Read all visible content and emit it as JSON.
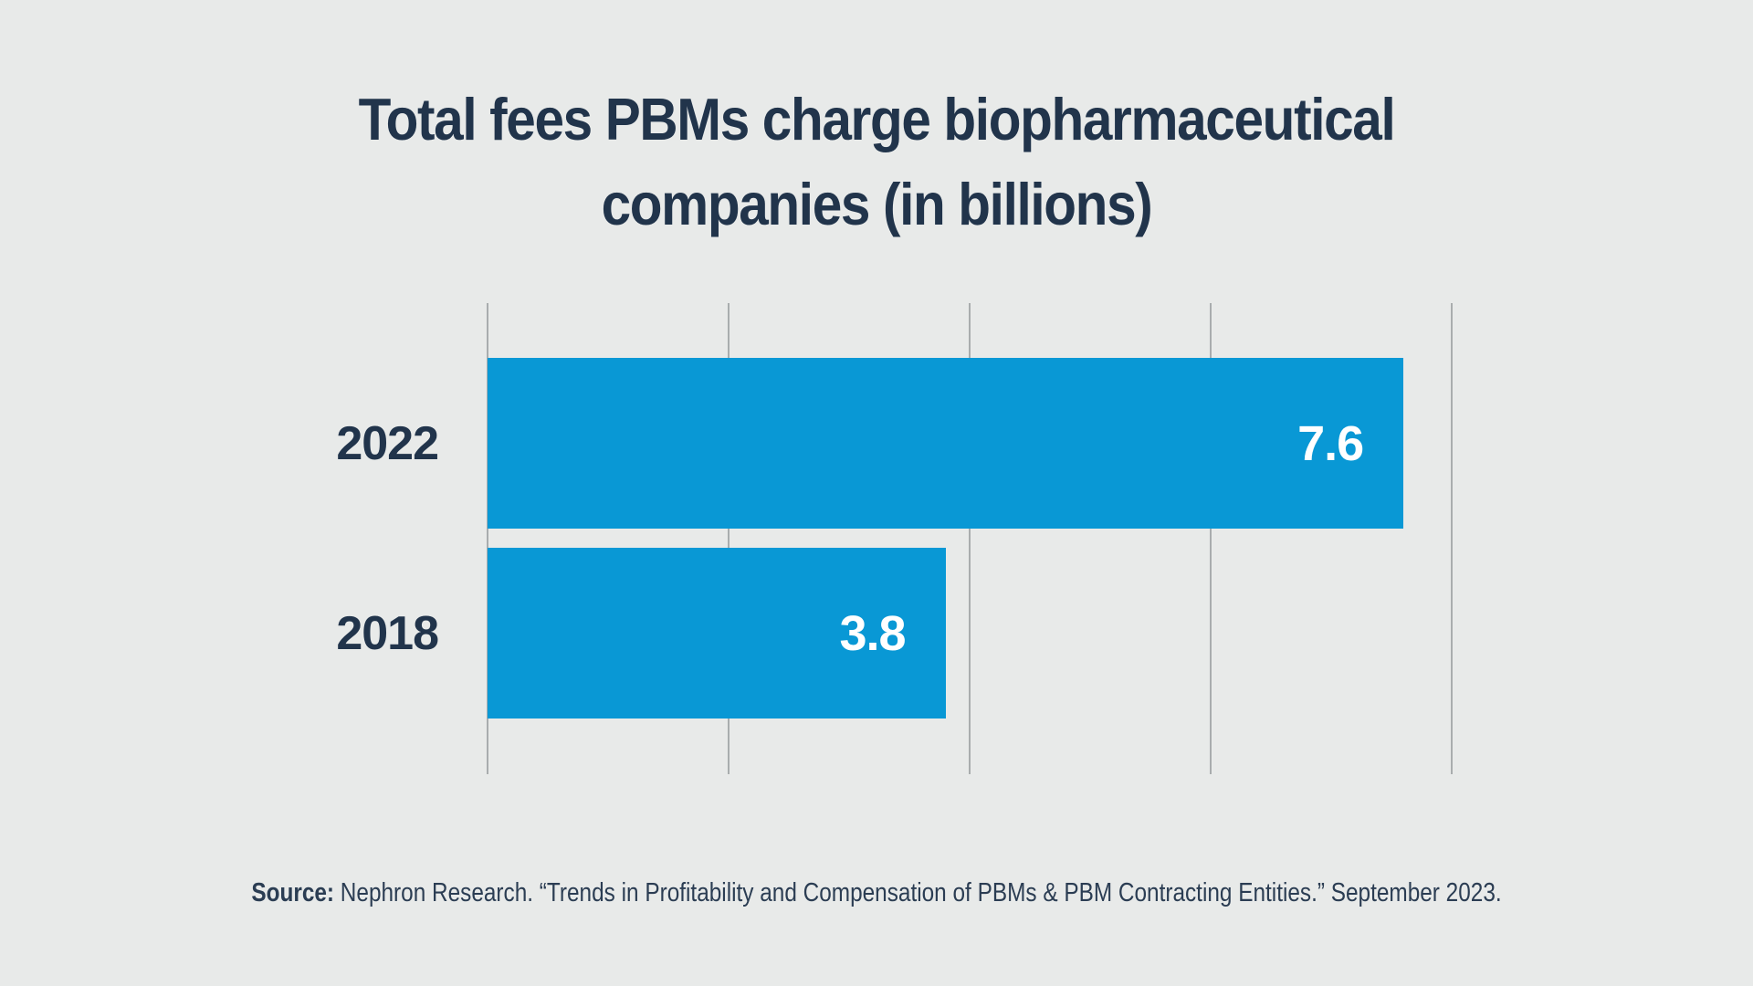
{
  "title_lines": [
    "Total fees PBMs charge biopharmaceutical",
    "companies (in billions)"
  ],
  "source": {
    "label": "Source:",
    "text": " Nephron Research. “Trends in Profitability and Compensation of PBMs & PBM Contracting Entities.” September 2023."
  },
  "colors": {
    "background": "#e8eae9",
    "bar": "#0998d5",
    "title_navy": "#21344b",
    "gridline": "#a9adae",
    "value_label": "#ffffff"
  },
  "chart_data": {
    "type": "bar",
    "orientation": "horizontal",
    "title": "Total fees PBMs charge biopharmaceutical companies (in billions)",
    "categories": [
      "2022",
      "2018"
    ],
    "values": [
      7.6,
      3.8
    ],
    "value_labels": [
      "7.6",
      "3.8"
    ],
    "xlabel": "",
    "ylabel": "",
    "xlim": [
      0,
      8
    ],
    "gridline_values": [
      0,
      2,
      4,
      6,
      8
    ],
    "grid": true,
    "legend": false,
    "value_label_position": "inside-end",
    "bar_color": "#0998d5"
  }
}
